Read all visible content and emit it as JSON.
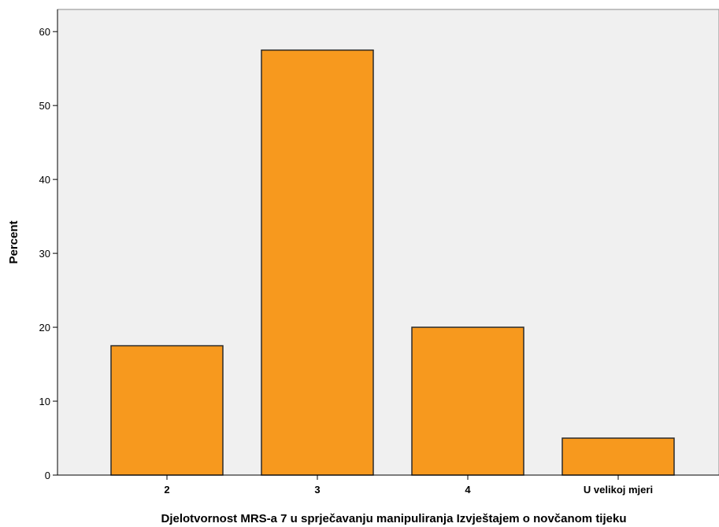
{
  "chart_data": {
    "type": "bar",
    "categories": [
      "2",
      "3",
      "4",
      "U velikoj mjeri"
    ],
    "values": [
      17.5,
      57.5,
      20,
      5
    ],
    "xlabel": "Djelotvornost MRS-a 7 u sprječavanju manipuliranja Izvještajem o novčanom tijeku",
    "ylabel": "Percent",
    "ylim": [
      0,
      63
    ],
    "yticks": [
      0,
      10,
      20,
      30,
      40,
      50,
      60
    ],
    "grid": false,
    "colors": {
      "bar_fill": "#F7991E",
      "bar_stroke": "#2B2B2B",
      "plot_background": "#F0F0F0",
      "axis": "#000000"
    }
  }
}
